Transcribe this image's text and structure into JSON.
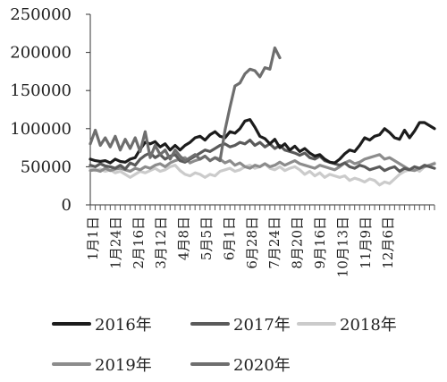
{
  "chart_data": {
    "type": "line",
    "x_tick_labels": [
      "1月1日",
      "1月24日",
      "2月16日",
      "3月12日",
      "4月8日",
      "5月5日",
      "6月1日",
      "6月28日",
      "7月24日",
      "8月20日",
      "9月16日",
      "10月13日",
      "11月9日",
      "12月6日"
    ],
    "y_tick_labels": [
      "0",
      "50000",
      "100000",
      "150000",
      "200000",
      "250000"
    ],
    "ylim": [
      0,
      250000
    ],
    "grid": false,
    "legend_position": "bottom",
    "series": [
      {
        "name": "2016年",
        "color": "#1c1c1c",
        "points": [
          [
            1,
            60000
          ],
          [
            2,
            58000
          ],
          [
            3,
            57000
          ],
          [
            4,
            58000
          ],
          [
            5,
            55000
          ],
          [
            6,
            60000
          ],
          [
            7,
            57000
          ],
          [
            8,
            56000
          ],
          [
            9,
            60000
          ],
          [
            10,
            62000
          ],
          [
            11,
            73000
          ],
          [
            12,
            82000
          ],
          [
            13,
            80000
          ],
          [
            14,
            83000
          ],
          [
            15,
            76000
          ],
          [
            16,
            80000
          ],
          [
            17,
            72000
          ],
          [
            18,
            78000
          ],
          [
            19,
            72000
          ],
          [
            20,
            78000
          ],
          [
            21,
            82000
          ],
          [
            22,
            88000
          ],
          [
            23,
            90000
          ],
          [
            24,
            85000
          ],
          [
            25,
            92000
          ],
          [
            26,
            96000
          ],
          [
            27,
            90000
          ],
          [
            28,
            88000
          ],
          [
            29,
            96000
          ],
          [
            30,
            94000
          ],
          [
            31,
            100000
          ],
          [
            32,
            110000
          ],
          [
            33,
            112000
          ],
          [
            34,
            102000
          ],
          [
            35,
            90000
          ],
          [
            36,
            87000
          ],
          [
            37,
            80000
          ],
          [
            38,
            86000
          ],
          [
            39,
            75000
          ],
          [
            40,
            80000
          ],
          [
            41,
            72000
          ],
          [
            42,
            77000
          ],
          [
            43,
            70000
          ],
          [
            44,
            74000
          ],
          [
            45,
            68000
          ],
          [
            46,
            64000
          ],
          [
            47,
            66000
          ],
          [
            48,
            60000
          ],
          [
            49,
            56000
          ],
          [
            50,
            55000
          ],
          [
            51,
            60000
          ],
          [
            52,
            67000
          ],
          [
            53,
            72000
          ],
          [
            54,
            70000
          ],
          [
            55,
            78000
          ],
          [
            56,
            88000
          ],
          [
            57,
            85000
          ],
          [
            58,
            90000
          ],
          [
            59,
            92000
          ],
          [
            60,
            100000
          ],
          [
            61,
            95000
          ],
          [
            62,
            88000
          ],
          [
            63,
            86000
          ],
          [
            64,
            98000
          ],
          [
            65,
            88000
          ],
          [
            66,
            97000
          ],
          [
            67,
            108000
          ],
          [
            68,
            108000
          ],
          [
            69,
            104000
          ],
          [
            70,
            100000
          ]
        ]
      },
      {
        "name": "2017年",
        "color": "#5a5a5a",
        "points": [
          [
            1,
            52000
          ],
          [
            2,
            50000
          ],
          [
            3,
            54000
          ],
          [
            4,
            51000
          ],
          [
            5,
            50000
          ],
          [
            6,
            48000
          ],
          [
            7,
            52000
          ],
          [
            8,
            47000
          ],
          [
            9,
            55000
          ],
          [
            10,
            52000
          ],
          [
            11,
            60000
          ],
          [
            12,
            65000
          ],
          [
            13,
            68000
          ],
          [
            14,
            62000
          ],
          [
            15,
            66000
          ],
          [
            16,
            60000
          ],
          [
            17,
            64000
          ],
          [
            18,
            66000
          ],
          [
            19,
            58000
          ],
          [
            20,
            56000
          ],
          [
            21,
            60000
          ],
          [
            22,
            64000
          ],
          [
            23,
            68000
          ],
          [
            24,
            72000
          ],
          [
            25,
            70000
          ],
          [
            26,
            74000
          ],
          [
            27,
            78000
          ],
          [
            28,
            80000
          ],
          [
            29,
            76000
          ],
          [
            30,
            78000
          ],
          [
            31,
            82000
          ],
          [
            32,
            80000
          ],
          [
            33,
            85000
          ],
          [
            34,
            78000
          ],
          [
            35,
            82000
          ],
          [
            36,
            76000
          ],
          [
            37,
            80000
          ],
          [
            38,
            74000
          ],
          [
            39,
            78000
          ],
          [
            40,
            72000
          ],
          [
            41,
            70000
          ],
          [
            42,
            68000
          ],
          [
            43,
            65000
          ],
          [
            44,
            68000
          ],
          [
            45,
            62000
          ],
          [
            46,
            60000
          ],
          [
            47,
            64000
          ],
          [
            48,
            58000
          ],
          [
            49,
            56000
          ],
          [
            50,
            54000
          ],
          [
            51,
            52000
          ],
          [
            52,
            55000
          ],
          [
            53,
            50000
          ],
          [
            54,
            48000
          ],
          [
            55,
            52000
          ],
          [
            56,
            50000
          ],
          [
            57,
            46000
          ],
          [
            58,
            48000
          ],
          [
            59,
            50000
          ],
          [
            60,
            45000
          ],
          [
            61,
            48000
          ],
          [
            62,
            50000
          ],
          [
            63,
            44000
          ],
          [
            64,
            48000
          ],
          [
            65,
            46000
          ],
          [
            66,
            50000
          ],
          [
            67,
            48000
          ],
          [
            68,
            52000
          ],
          [
            69,
            50000
          ],
          [
            70,
            48000
          ]
        ]
      },
      {
        "name": "2018年",
        "color": "#cbcbcb",
        "points": [
          [
            1,
            48000
          ],
          [
            2,
            45000
          ],
          [
            3,
            47000
          ],
          [
            4,
            44000
          ],
          [
            5,
            46000
          ],
          [
            6,
            42000
          ],
          [
            7,
            44000
          ],
          [
            8,
            40000
          ],
          [
            9,
            36000
          ],
          [
            10,
            40000
          ],
          [
            11,
            44000
          ],
          [
            12,
            42000
          ],
          [
            13,
            45000
          ],
          [
            14,
            48000
          ],
          [
            15,
            44000
          ],
          [
            16,
            46000
          ],
          [
            17,
            50000
          ],
          [
            18,
            52000
          ],
          [
            19,
            45000
          ],
          [
            20,
            40000
          ],
          [
            21,
            38000
          ],
          [
            22,
            42000
          ],
          [
            23,
            40000
          ],
          [
            24,
            36000
          ],
          [
            25,
            40000
          ],
          [
            26,
            38000
          ],
          [
            27,
            44000
          ],
          [
            28,
            46000
          ],
          [
            29,
            48000
          ],
          [
            30,
            44000
          ],
          [
            31,
            46000
          ],
          [
            32,
            50000
          ],
          [
            33,
            52000
          ],
          [
            34,
            48000
          ],
          [
            35,
            50000
          ],
          [
            36,
            54000
          ],
          [
            37,
            48000
          ],
          [
            38,
            46000
          ],
          [
            39,
            50000
          ],
          [
            40,
            45000
          ],
          [
            41,
            48000
          ],
          [
            42,
            50000
          ],
          [
            43,
            46000
          ],
          [
            44,
            40000
          ],
          [
            45,
            44000
          ],
          [
            46,
            38000
          ],
          [
            47,
            42000
          ],
          [
            48,
            36000
          ],
          [
            49,
            40000
          ],
          [
            50,
            38000
          ],
          [
            51,
            36000
          ],
          [
            52,
            38000
          ],
          [
            53,
            32000
          ],
          [
            54,
            35000
          ],
          [
            55,
            33000
          ],
          [
            56,
            30000
          ],
          [
            57,
            34000
          ],
          [
            58,
            32000
          ],
          [
            59,
            26000
          ],
          [
            60,
            30000
          ],
          [
            61,
            28000
          ],
          [
            62,
            34000
          ],
          [
            63,
            40000
          ],
          [
            64,
            44000
          ],
          [
            65,
            46000
          ],
          [
            66,
            48000
          ],
          [
            67,
            44000
          ],
          [
            68,
            50000
          ],
          [
            69,
            52000
          ],
          [
            70,
            55000
          ]
        ]
      },
      {
        "name": "2019年",
        "color": "#8c8c8c",
        "points": [
          [
            1,
            45000
          ],
          [
            2,
            46000
          ],
          [
            3,
            44000
          ],
          [
            4,
            48000
          ],
          [
            5,
            45000
          ],
          [
            6,
            47000
          ],
          [
            7,
            48000
          ],
          [
            8,
            46000
          ],
          [
            9,
            44000
          ],
          [
            10,
            48000
          ],
          [
            11,
            46000
          ],
          [
            12,
            50000
          ],
          [
            13,
            48000
          ],
          [
            14,
            52000
          ],
          [
            15,
            54000
          ],
          [
            16,
            50000
          ],
          [
            17,
            55000
          ],
          [
            18,
            58000
          ],
          [
            19,
            60000
          ],
          [
            20,
            62000
          ],
          [
            21,
            55000
          ],
          [
            22,
            58000
          ],
          [
            23,
            60000
          ],
          [
            24,
            64000
          ],
          [
            25,
            58000
          ],
          [
            26,
            62000
          ],
          [
            27,
            60000
          ],
          [
            28,
            55000
          ],
          [
            29,
            58000
          ],
          [
            30,
            52000
          ],
          [
            31,
            55000
          ],
          [
            32,
            50000
          ],
          [
            33,
            48000
          ],
          [
            34,
            52000
          ],
          [
            35,
            50000
          ],
          [
            36,
            54000
          ],
          [
            37,
            50000
          ],
          [
            38,
            52000
          ],
          [
            39,
            56000
          ],
          [
            40,
            52000
          ],
          [
            41,
            55000
          ],
          [
            42,
            58000
          ],
          [
            43,
            54000
          ],
          [
            44,
            52000
          ],
          [
            45,
            50000
          ],
          [
            46,
            48000
          ],
          [
            47,
            52000
          ],
          [
            48,
            50000
          ],
          [
            49,
            48000
          ],
          [
            50,
            46000
          ],
          [
            51,
            50000
          ],
          [
            52,
            55000
          ],
          [
            53,
            58000
          ],
          [
            54,
            54000
          ],
          [
            55,
            56000
          ],
          [
            56,
            60000
          ],
          [
            57,
            62000
          ],
          [
            58,
            64000
          ],
          [
            59,
            66000
          ],
          [
            60,
            60000
          ],
          [
            61,
            62000
          ],
          [
            62,
            58000
          ],
          [
            63,
            54000
          ],
          [
            64,
            50000
          ],
          [
            65,
            46000
          ],
          [
            66,
            45000
          ],
          [
            67,
            48000
          ],
          [
            68,
            50000
          ],
          [
            69,
            52000
          ],
          [
            70,
            54000
          ]
        ]
      },
      {
        "name": "2020年",
        "color": "#6e6e6e",
        "points": [
          [
            1,
            80000
          ],
          [
            2,
            98000
          ],
          [
            3,
            78000
          ],
          [
            4,
            88000
          ],
          [
            5,
            76000
          ],
          [
            6,
            90000
          ],
          [
            7,
            72000
          ],
          [
            8,
            86000
          ],
          [
            9,
            74000
          ],
          [
            10,
            88000
          ],
          [
            11,
            70000
          ],
          [
            12,
            96000
          ],
          [
            13,
            62000
          ],
          [
            14,
            78000
          ],
          [
            15,
            66000
          ],
          [
            16,
            72000
          ],
          [
            17,
            60000
          ],
          [
            18,
            72000
          ],
          [
            19,
            64000
          ],
          [
            20,
            58000
          ],
          [
            21,
            62000
          ],
          [
            22,
            66000
          ],
          [
            23,
            60000
          ],
          [
            24,
            64000
          ],
          [
            25,
            58000
          ],
          [
            26,
            62000
          ],
          [
            27,
            58000
          ],
          [
            28,
            98000
          ],
          [
            29,
            128000
          ],
          [
            30,
            156000
          ],
          [
            31,
            160000
          ],
          [
            32,
            172000
          ],
          [
            33,
            178000
          ],
          [
            34,
            176000
          ],
          [
            35,
            168000
          ],
          [
            36,
            180000
          ],
          [
            37,
            178000
          ],
          [
            38,
            206000
          ],
          [
            39,
            193000
          ]
        ]
      }
    ]
  }
}
